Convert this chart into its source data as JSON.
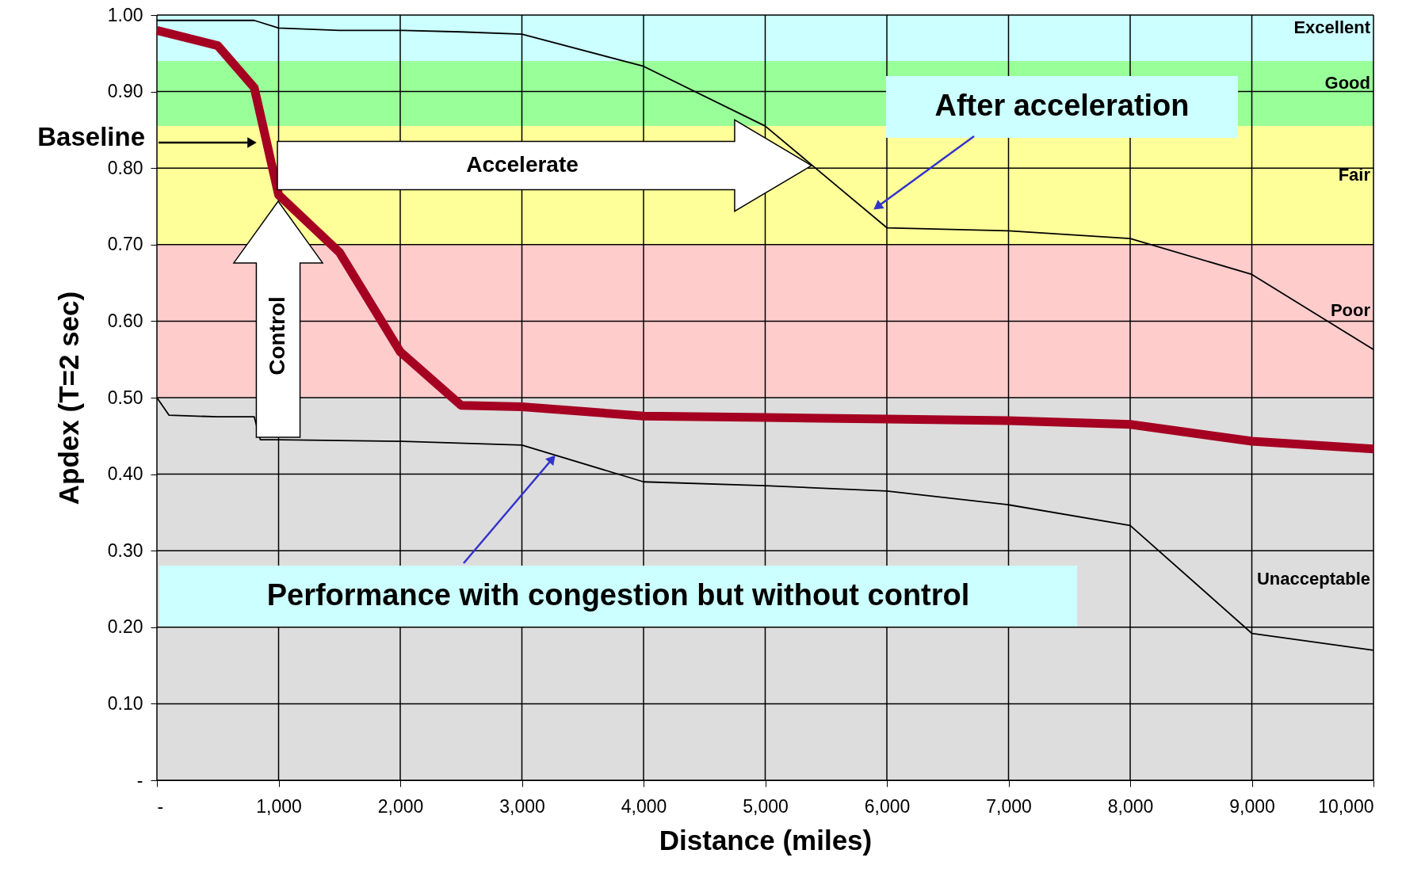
{
  "chart_data": {
    "type": "line",
    "xlabel": "Distance (miles)",
    "ylabel": "Apdex (T=2 sec)",
    "xlim": [
      0,
      10000
    ],
    "ylim": [
      0,
      1.0
    ],
    "xticks": [
      {
        "value": 0,
        "label": "-"
      },
      {
        "value": 1000,
        "label": "1,000"
      },
      {
        "value": 2000,
        "label": "2,000"
      },
      {
        "value": 3000,
        "label": "3,000"
      },
      {
        "value": 4000,
        "label": "4,000"
      },
      {
        "value": 5000,
        "label": "5,000"
      },
      {
        "value": 6000,
        "label": "6,000"
      },
      {
        "value": 7000,
        "label": "7,000"
      },
      {
        "value": 8000,
        "label": "8,000"
      },
      {
        "value": 9000,
        "label": "9,000"
      },
      {
        "value": 10000,
        "label": "10,000"
      }
    ],
    "yticks": [
      {
        "value": 0,
        "label": "-"
      },
      {
        "value": 0.1,
        "label": "0.10"
      },
      {
        "value": 0.2,
        "label": "0.20"
      },
      {
        "value": 0.3,
        "label": "0.30"
      },
      {
        "value": 0.4,
        "label": "0.40"
      },
      {
        "value": 0.5,
        "label": "0.50"
      },
      {
        "value": 0.6,
        "label": "0.60"
      },
      {
        "value": 0.7,
        "label": "0.70"
      },
      {
        "value": 0.8,
        "label": "0.80"
      },
      {
        "value": 0.9,
        "label": "0.90"
      },
      {
        "value": 1.0,
        "label": "1.00"
      }
    ],
    "grid": true,
    "marker": "none",
    "line_style": "solid",
    "series": [
      {
        "color": "#a50021",
        "x": [
          0,
          500,
          800,
          1000,
          1500,
          2000,
          2500,
          3000,
          4000,
          5000,
          6000,
          7000,
          8000,
          9000,
          10000
        ],
        "values": [
          0.98,
          0.96,
          0.905,
          0.765,
          0.69,
          0.56,
          0.49,
          0.488,
          0.476,
          0.474,
          0.472,
          0.47,
          0.465,
          0.443,
          0.433
        ]
      },
      {
        "color": "#000000",
        "x": [
          0,
          800,
          1000,
          1500,
          2000,
          2500,
          3000,
          4000,
          5000,
          6000,
          7000,
          8000,
          9000,
          10000
        ],
        "values": [
          0.993,
          0.993,
          0.983,
          0.98,
          0.98,
          0.978,
          0.975,
          0.933,
          0.855,
          0.722,
          0.718,
          0.708,
          0.661,
          0.563
        ]
      },
      {
        "color": "#000000",
        "x": [
          0,
          100,
          500,
          800,
          850,
          1000,
          2000,
          3000,
          4000,
          5000,
          6000,
          7000,
          8000,
          9000,
          10000
        ],
        "values": [
          0.5,
          0.477,
          0.475,
          0.475,
          0.445,
          0.445,
          0.443,
          0.438,
          0.39,
          0.385,
          0.378,
          0.36,
          0.333,
          0.192,
          0.17
        ]
      }
    ],
    "bands": [
      {
        "axis": "y",
        "from": 0,
        "to": 0.5,
        "label": "Unacceptable",
        "color": "#dddddd"
      },
      {
        "axis": "y",
        "from": 0.5,
        "to": 0.7,
        "label": "Poor",
        "color": "#ffcccc"
      },
      {
        "axis": "y",
        "from": 0.7,
        "to": 0.855,
        "label": "Fair",
        "color": "#ffff99"
      },
      {
        "axis": "y",
        "from": 0.855,
        "to": 0.94,
        "label": "Good",
        "color": "#99ff99"
      },
      {
        "axis": "y",
        "from": 0.94,
        "to": 1.0,
        "label": "Excellent",
        "color": "#ccffff"
      }
    ],
    "annotations": [
      "Baseline",
      "After acceleration",
      {
        "text": "Performance with congestion but without control",
        "x": 3250,
        "y": 0.42
      },
      "Accelerate",
      "Control"
    ]
  }
}
